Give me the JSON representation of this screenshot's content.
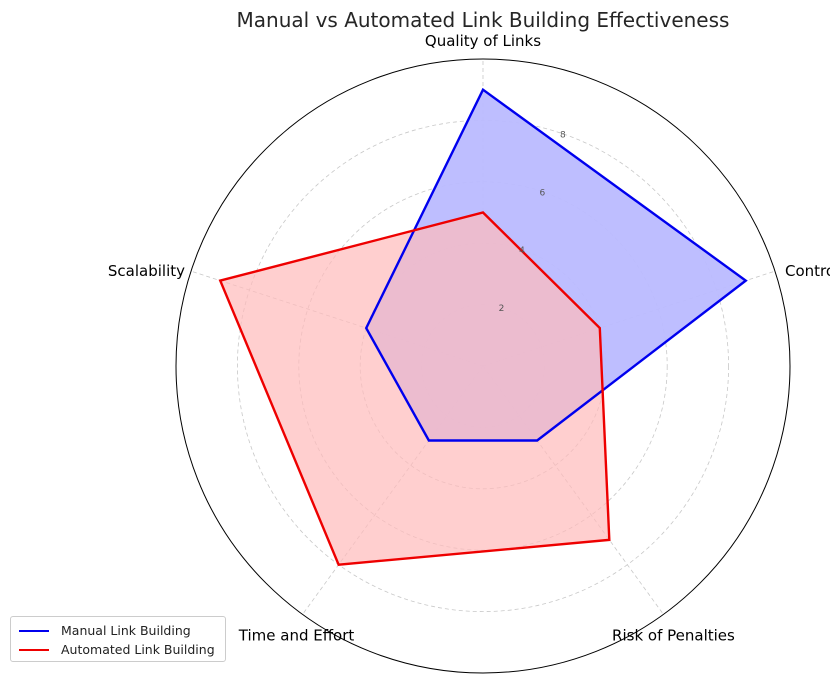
{
  "chart_data": {
    "type": "radar",
    "title": "Manual vs Automated Link Building Effectiveness",
    "categories": [
      "Quality of Links",
      "Control",
      "Risk of Penalties",
      "Time and Effort",
      "Scalability"
    ],
    "rlim": [
      0,
      10
    ],
    "rticks": [
      2,
      4,
      6,
      8
    ],
    "grid": true,
    "legend_position": "lower-left",
    "series": [
      {
        "name": "Manual Link Building",
        "values": [
          9,
          9,
          3,
          3,
          4
        ],
        "color": "#0000ee",
        "fill": "#bbbbff"
      },
      {
        "name": "Automated Link Building",
        "values": [
          5,
          4,
          7,
          8,
          9
        ],
        "color": "#ee0000",
        "fill": "#ffbbbb"
      }
    ]
  }
}
